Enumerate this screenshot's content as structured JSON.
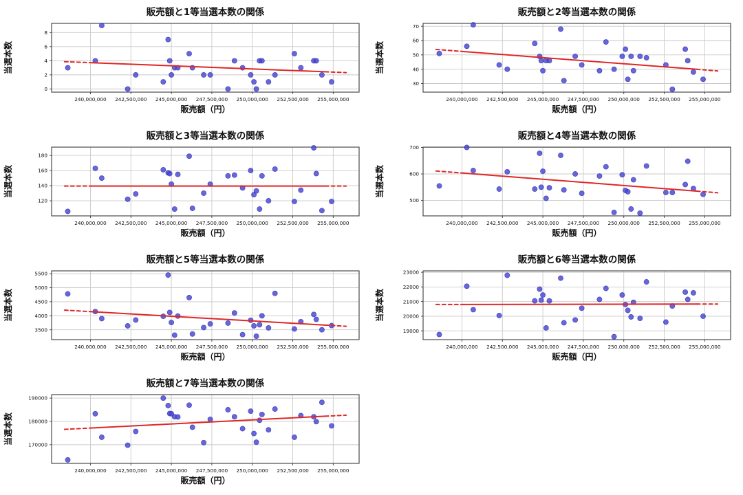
{
  "figure": {
    "background": "#ffffff",
    "point_color": "#4646d0",
    "point_edge_color": "#3434bb",
    "trend_color": "#e02626",
    "grid_color": "#c9c9c9",
    "spine_color": "#3a3a3a",
    "text_color": "#111111",
    "x_axis_label": "販売額（円）",
    "y_axis_label": "当選本数",
    "xlim": [
      237600000,
      256600000
    ],
    "x_ticks": [
      240000000,
      242500000,
      245000000,
      247500000,
      250000000,
      252500000,
      255000000
    ],
    "x_tick_labels": [
      "240,000,000",
      "242,500,000",
      "245,000,000",
      "247,500,000",
      "250,000,000",
      "252,500,000",
      "255,000,000"
    ]
  },
  "chart_data": [
    {
      "type": "scatter",
      "title": "販売額と1等当選本数の関係",
      "xlabel": "販売額（円）",
      "ylabel": "当選本数",
      "ylim": [
        -0.45,
        9.3
      ],
      "y_ticks": [
        0,
        2,
        4,
        6,
        8
      ],
      "x": [
        238600000,
        240300000,
        240700000,
        242300000,
        242800000,
        244500000,
        244800000,
        244900000,
        245000000,
        245200000,
        245400000,
        246100000,
        246300000,
        247000000,
        247400000,
        248500000,
        248900000,
        249400000,
        249900000,
        250100000,
        250250000,
        250450000,
        250600000,
        251000000,
        251400000,
        252600000,
        253000000,
        253800000,
        253950000,
        254300000,
        254900000
      ],
      "y": [
        3,
        4,
        9,
        0,
        2,
        1,
        7,
        4,
        2,
        3,
        3,
        5,
        3,
        2,
        2,
        0,
        4,
        3,
        2,
        1,
        0,
        4,
        4,
        1,
        2,
        5,
        3,
        4,
        4,
        2,
        1
      ],
      "trend": {
        "x": [
          238400000,
          255800000
        ],
        "y": [
          3.87,
          2.32
        ],
        "solid_x": [
          240100000,
          254500000
        ]
      }
    },
    {
      "type": "scatter",
      "title": "販売額と2等当選本数の関係",
      "xlabel": "販売額（円）",
      "ylabel": "当選本数",
      "ylim": [
        24,
        72
      ],
      "y_ticks": [
        30,
        40,
        50,
        60,
        70
      ],
      "x": [
        238600000,
        240300000,
        240700000,
        242300000,
        242800000,
        244500000,
        244800000,
        244900000,
        245000000,
        245200000,
        245400000,
        246100000,
        246300000,
        247000000,
        247400000,
        248500000,
        248900000,
        249400000,
        249900000,
        250100000,
        250250000,
        250450000,
        250600000,
        251000000,
        251400000,
        252600000,
        253000000,
        253800000,
        253950000,
        254300000,
        254900000
      ],
      "y": [
        51,
        56,
        71,
        43,
        40,
        58,
        49,
        46,
        39,
        46,
        46,
        68,
        32,
        49,
        43,
        39,
        59,
        40,
        49,
        54,
        33,
        49,
        39,
        49,
        48,
        43,
        26,
        54,
        46,
        38,
        33
      ],
      "trend": {
        "x": [
          238400000,
          255800000
        ],
        "y": [
          53.8,
          38.8
        ],
        "solid_x": [
          240100000,
          254500000
        ]
      }
    },
    {
      "type": "scatter",
      "title": "販売額と3等当選本数の関係",
      "xlabel": "販売額（円）",
      "ylabel": "当選本数",
      "ylim": [
        100,
        191
      ],
      "y_ticks": [
        120,
        140,
        160,
        180
      ],
      "x": [
        238600000,
        240300000,
        240700000,
        242300000,
        242800000,
        244500000,
        244800000,
        244900000,
        245000000,
        245200000,
        245400000,
        246100000,
        246300000,
        247000000,
        247400000,
        248500000,
        248900000,
        249400000,
        249900000,
        250100000,
        250250000,
        250450000,
        250600000,
        251000000,
        251400000,
        252600000,
        253000000,
        253800000,
        253950000,
        254300000,
        254900000
      ],
      "y": [
        106,
        163,
        150,
        122,
        129,
        161,
        157,
        156,
        142,
        109,
        155,
        179,
        110,
        130,
        142,
        153,
        154,
        137,
        160,
        128,
        133,
        109,
        153,
        120,
        162,
        119,
        134,
        190,
        156,
        107,
        119
      ],
      "trend": {
        "x": [
          238400000,
          255800000
        ],
        "y": [
          139.5,
          139.5
        ],
        "solid_x": [
          240100000,
          254500000
        ]
      }
    },
    {
      "type": "scatter",
      "title": "販売額と4等当選本数の関係",
      "xlabel": "販売額（円）",
      "ylabel": "当選本数",
      "ylim": [
        442,
        701
      ],
      "y_ticks": [
        500,
        600,
        700
      ],
      "x": [
        238600000,
        240300000,
        240700000,
        242300000,
        242800000,
        244500000,
        244800000,
        244900000,
        245000000,
        245200000,
        245400000,
        246100000,
        246300000,
        247000000,
        247400000,
        248500000,
        248900000,
        249400000,
        249900000,
        250100000,
        250250000,
        250450000,
        250600000,
        251000000,
        251400000,
        252600000,
        253000000,
        253800000,
        253950000,
        254300000,
        254900000
      ],
      "y": [
        555,
        700,
        613,
        543,
        608,
        543,
        678,
        550,
        610,
        508,
        548,
        670,
        540,
        600,
        527,
        592,
        627,
        455,
        597,
        538,
        533,
        468,
        578,
        452,
        630,
        530,
        530,
        560,
        648,
        545,
        523
      ],
      "trend": {
        "x": [
          238400000,
          255800000
        ],
        "y": [
          611,
          529
        ],
        "solid_x": [
          240100000,
          254500000
        ]
      }
    },
    {
      "type": "scatter",
      "title": "販売額と5等当選本数の関係",
      "xlabel": "販売額（円）",
      "ylabel": "当選本数",
      "ylim": [
        3150,
        5600
      ],
      "y_ticks": [
        3500,
        4000,
        4500,
        5000,
        5500
      ],
      "x": [
        238600000,
        240300000,
        240700000,
        242300000,
        242800000,
        244500000,
        244800000,
        244900000,
        245000000,
        245200000,
        245400000,
        246100000,
        246300000,
        247000000,
        247400000,
        248500000,
        248900000,
        249400000,
        249900000,
        250100000,
        250250000,
        250450000,
        250600000,
        251000000,
        251400000,
        252600000,
        253000000,
        253800000,
        253950000,
        254300000,
        254900000
      ],
      "y": [
        4780,
        4150,
        3900,
        3640,
        3850,
        3980,
        5450,
        4120,
        3760,
        3310,
        3990,
        4650,
        3350,
        3580,
        3710,
        3740,
        4100,
        3330,
        3840,
        3640,
        3270,
        3680,
        4000,
        3570,
        4800,
        3530,
        3790,
        4050,
        3870,
        3500,
        3650
      ],
      "trend": {
        "x": [
          238400000,
          255800000
        ],
        "y": [
          4200,
          3625
        ],
        "solid_x": [
          240100000,
          254500000
        ]
      }
    },
    {
      "type": "scatter",
      "title": "販売額と6等当選本数の関係",
      "xlabel": "販売額（円）",
      "ylabel": "当選本数",
      "ylim": [
        18400,
        23100
      ],
      "y_ticks": [
        19000,
        20000,
        21000,
        22000,
        23000
      ],
      "x": [
        238600000,
        240300000,
        240700000,
        242300000,
        242800000,
        244500000,
        244800000,
        244900000,
        245000000,
        245200000,
        245400000,
        246100000,
        246300000,
        247000000,
        247400000,
        248500000,
        248900000,
        249400000,
        249900000,
        250100000,
        250250000,
        250450000,
        250600000,
        251000000,
        251400000,
        252600000,
        253000000,
        253800000,
        253950000,
        254300000,
        254900000
      ],
      "y": [
        18750,
        22050,
        20450,
        20050,
        22800,
        21050,
        21850,
        21100,
        21450,
        19200,
        21050,
        22600,
        19550,
        19750,
        20550,
        21150,
        21900,
        18600,
        21450,
        20800,
        20400,
        19950,
        20950,
        19850,
        22350,
        19600,
        20700,
        21650,
        21150,
        21600,
        20000
      ],
      "trend": {
        "x": [
          238400000,
          255800000
        ],
        "y": [
          20800,
          20830
        ],
        "solid_x": [
          240100000,
          254500000
        ]
      }
    },
    {
      "type": "scatter",
      "title": "販売額と7等当選本数の関係",
      "xlabel": "販売額（円）",
      "ylabel": "当選本数",
      "ylim": [
        162000,
        191500
      ],
      "y_ticks": [
        170000,
        180000,
        190000
      ],
      "x": [
        238600000,
        240300000,
        240700000,
        242300000,
        242800000,
        244500000,
        244800000,
        244900000,
        245000000,
        245200000,
        245400000,
        246100000,
        246300000,
        247000000,
        247400000,
        248500000,
        248900000,
        249400000,
        249900000,
        250100000,
        250250000,
        250450000,
        250600000,
        251000000,
        251400000,
        252600000,
        253000000,
        253800000,
        253950000,
        254300000,
        254900000
      ],
      "y": [
        163500,
        183300,
        173200,
        169800,
        175700,
        190000,
        186800,
        183400,
        183300,
        182000,
        181900,
        187000,
        177500,
        170900,
        180900,
        185000,
        182000,
        176900,
        184400,
        174800,
        171100,
        180500,
        183000,
        176400,
        185300,
        173200,
        182500,
        182000,
        179900,
        188200,
        178100
      ],
      "trend": {
        "x": [
          238400000,
          255800000
        ],
        "y": [
          176600,
          182680
        ],
        "solid_x": [
          240100000,
          254500000
        ]
      }
    }
  ]
}
